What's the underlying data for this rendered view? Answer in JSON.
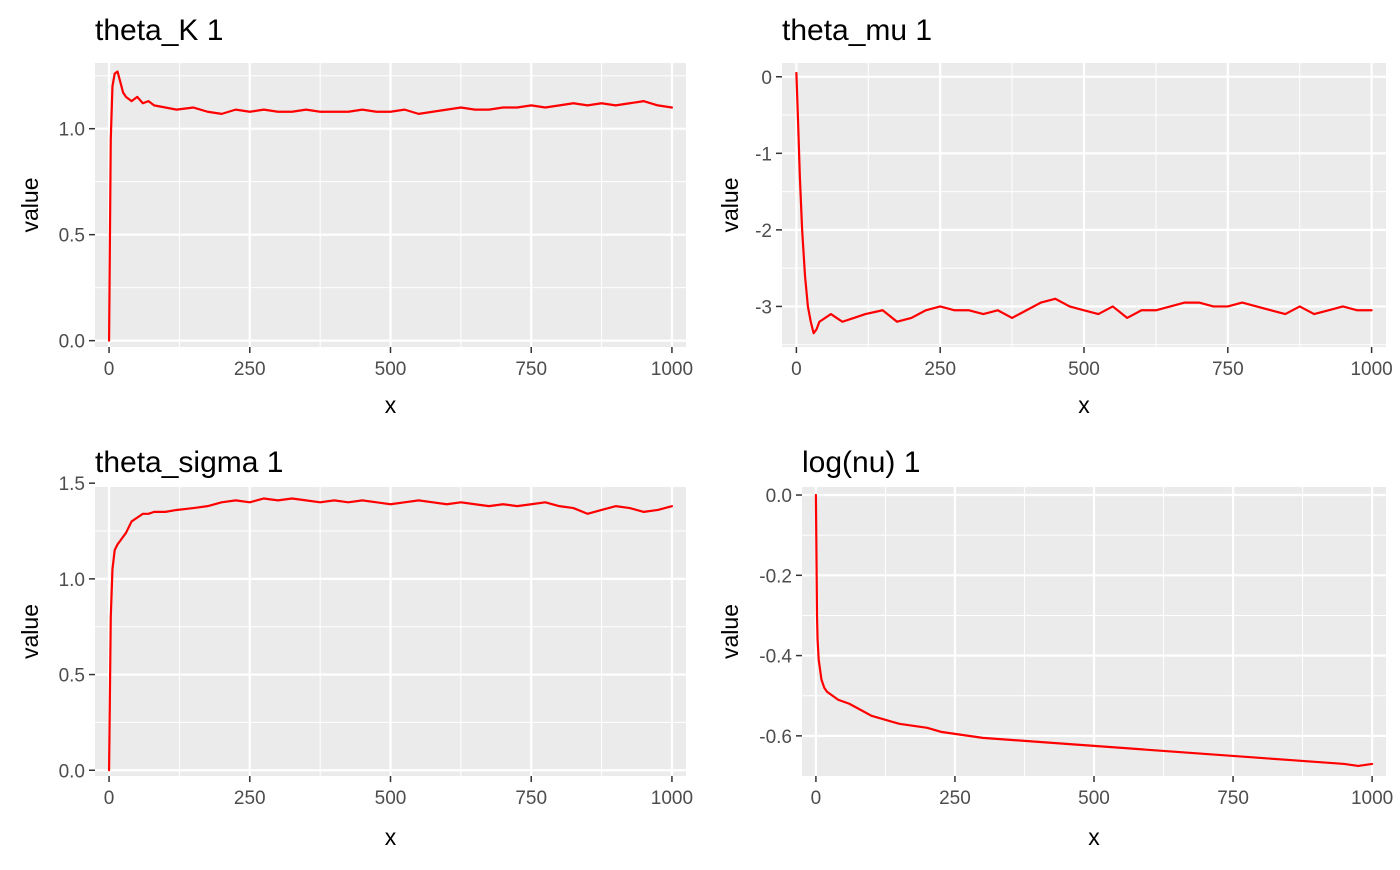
{
  "chart_data": [
    {
      "type": "line",
      "title": "theta_K 1",
      "xlabel": "x",
      "ylabel": "value",
      "xlim": [
        -25,
        1025
      ],
      "ylim": [
        -0.03,
        1.31
      ],
      "xticks": [
        0,
        250,
        500,
        750,
        1000
      ],
      "xtick_labels": [
        "0",
        "250",
        "500",
        "750",
        "1000"
      ],
      "yticks": [
        0,
        0.5,
        1
      ],
      "ytick_labels": [
        "0.0",
        "0.5",
        "1.0"
      ],
      "grid": true,
      "legend": "none",
      "series": [
        {
          "color": "#ff0000",
          "x": [
            0,
            3,
            6,
            10,
            15,
            20,
            25,
            30,
            35,
            40,
            50,
            60,
            70,
            80,
            100,
            120,
            150,
            175,
            200,
            225,
            250,
            275,
            300,
            325,
            350,
            375,
            400,
            425,
            450,
            475,
            500,
            525,
            550,
            575,
            600,
            625,
            650,
            675,
            700,
            725,
            750,
            775,
            800,
            825,
            850,
            875,
            900,
            925,
            950,
            975,
            1000
          ],
          "y": [
            0.0,
            0.95,
            1.2,
            1.26,
            1.27,
            1.22,
            1.17,
            1.15,
            1.14,
            1.13,
            1.15,
            1.12,
            1.13,
            1.11,
            1.1,
            1.09,
            1.1,
            1.08,
            1.07,
            1.09,
            1.08,
            1.09,
            1.08,
            1.08,
            1.09,
            1.08,
            1.08,
            1.08,
            1.09,
            1.08,
            1.08,
            1.09,
            1.07,
            1.08,
            1.09,
            1.1,
            1.09,
            1.09,
            1.1,
            1.1,
            1.11,
            1.1,
            1.11,
            1.12,
            1.11,
            1.12,
            1.11,
            1.12,
            1.13,
            1.11,
            1.1
          ]
        }
      ]
    },
    {
      "type": "line",
      "title": "theta_mu 1",
      "xlabel": "x",
      "ylabel": "value",
      "xlim": [
        -25,
        1025
      ],
      "ylim": [
        -3.53,
        0.18
      ],
      "xticks": [
        0,
        250,
        500,
        750,
        1000
      ],
      "xtick_labels": [
        "0",
        "250",
        "500",
        "750",
        "1000"
      ],
      "yticks": [
        -3,
        -2,
        -1,
        0
      ],
      "ytick_labels": [
        "-3",
        "-2",
        "-1",
        "0"
      ],
      "grid": true,
      "legend": "none",
      "series": [
        {
          "color": "#ff0000",
          "x": [
            0,
            3,
            6,
            10,
            15,
            20,
            25,
            30,
            35,
            40,
            50,
            60,
            70,
            80,
            100,
            120,
            150,
            175,
            200,
            225,
            250,
            275,
            300,
            325,
            350,
            375,
            400,
            425,
            450,
            475,
            500,
            525,
            550,
            575,
            600,
            625,
            650,
            675,
            700,
            725,
            750,
            775,
            800,
            825,
            850,
            875,
            900,
            925,
            950,
            975,
            1000
          ],
          "y": [
            0.05,
            -0.6,
            -1.3,
            -2.0,
            -2.6,
            -3.0,
            -3.2,
            -3.35,
            -3.3,
            -3.2,
            -3.15,
            -3.1,
            -3.15,
            -3.2,
            -3.15,
            -3.1,
            -3.05,
            -3.2,
            -3.15,
            -3.05,
            -3.0,
            -3.05,
            -3.05,
            -3.1,
            -3.05,
            -3.15,
            -3.05,
            -2.95,
            -2.9,
            -3.0,
            -3.05,
            -3.1,
            -3.0,
            -3.15,
            -3.05,
            -3.05,
            -3.0,
            -2.95,
            -2.95,
            -3.0,
            -3.0,
            -2.95,
            -3.0,
            -3.05,
            -3.1,
            -3.0,
            -3.1,
            -3.05,
            -3.0,
            -3.05,
            -3.05
          ]
        }
      ]
    },
    {
      "type": "line",
      "title": "theta_sigma 1",
      "xlabel": "x",
      "ylabel": "value",
      "xlim": [
        -25,
        1025
      ],
      "ylim": [
        -0.03,
        1.48
      ],
      "xticks": [
        0,
        250,
        500,
        750,
        1000
      ],
      "xtick_labels": [
        "0",
        "250",
        "500",
        "750",
        "1000"
      ],
      "yticks": [
        0,
        0.5,
        1,
        1.5
      ],
      "ytick_labels": [
        "0.0",
        "0.5",
        "1.0",
        "1.5"
      ],
      "grid": true,
      "legend": "none",
      "series": [
        {
          "color": "#ff0000",
          "x": [
            0,
            3,
            6,
            10,
            15,
            20,
            25,
            30,
            35,
            40,
            50,
            60,
            70,
            80,
            100,
            120,
            150,
            175,
            200,
            225,
            250,
            275,
            300,
            325,
            350,
            375,
            400,
            425,
            450,
            475,
            500,
            525,
            550,
            575,
            600,
            625,
            650,
            675,
            700,
            725,
            750,
            775,
            800,
            825,
            850,
            875,
            900,
            925,
            950,
            975,
            1000
          ],
          "y": [
            0.0,
            0.8,
            1.05,
            1.15,
            1.18,
            1.2,
            1.22,
            1.24,
            1.27,
            1.3,
            1.32,
            1.34,
            1.34,
            1.35,
            1.35,
            1.36,
            1.37,
            1.38,
            1.4,
            1.41,
            1.4,
            1.42,
            1.41,
            1.42,
            1.41,
            1.4,
            1.41,
            1.4,
            1.41,
            1.4,
            1.39,
            1.4,
            1.41,
            1.4,
            1.39,
            1.4,
            1.39,
            1.38,
            1.39,
            1.38,
            1.39,
            1.4,
            1.38,
            1.37,
            1.34,
            1.36,
            1.38,
            1.37,
            1.35,
            1.36,
            1.38
          ]
        }
      ]
    },
    {
      "type": "line",
      "title": "log(nu) 1",
      "xlabel": "x",
      "ylabel": "value",
      "xlim": [
        -25,
        1025
      ],
      "ylim": [
        -0.7,
        0.02
      ],
      "xticks": [
        0,
        250,
        500,
        750,
        1000
      ],
      "xtick_labels": [
        "0",
        "250",
        "500",
        "750",
        "1000"
      ],
      "yticks": [
        -0.6,
        -0.4,
        -0.2,
        0
      ],
      "ytick_labels": [
        "-0.6",
        "-0.4",
        "-0.2",
        "0.0"
      ],
      "grid": true,
      "legend": "none",
      "series": [
        {
          "color": "#ff0000",
          "x": [
            0,
            1,
            2,
            3,
            5,
            8,
            10,
            15,
            20,
            30,
            40,
            50,
            60,
            80,
            100,
            125,
            150,
            175,
            200,
            225,
            250,
            275,
            300,
            350,
            400,
            450,
            500,
            550,
            600,
            650,
            700,
            750,
            800,
            850,
            900,
            950,
            975,
            1000
          ],
          "y": [
            0.0,
            -0.15,
            -0.3,
            -0.36,
            -0.41,
            -0.44,
            -0.46,
            -0.48,
            -0.49,
            -0.5,
            -0.51,
            -0.515,
            -0.52,
            -0.535,
            -0.55,
            -0.56,
            -0.57,
            -0.575,
            -0.58,
            -0.59,
            -0.595,
            -0.6,
            -0.605,
            -0.61,
            -0.615,
            -0.62,
            -0.625,
            -0.63,
            -0.635,
            -0.64,
            -0.645,
            -0.65,
            -0.655,
            -0.66,
            -0.665,
            -0.67,
            -0.675,
            -0.67
          ]
        }
      ]
    }
  ]
}
